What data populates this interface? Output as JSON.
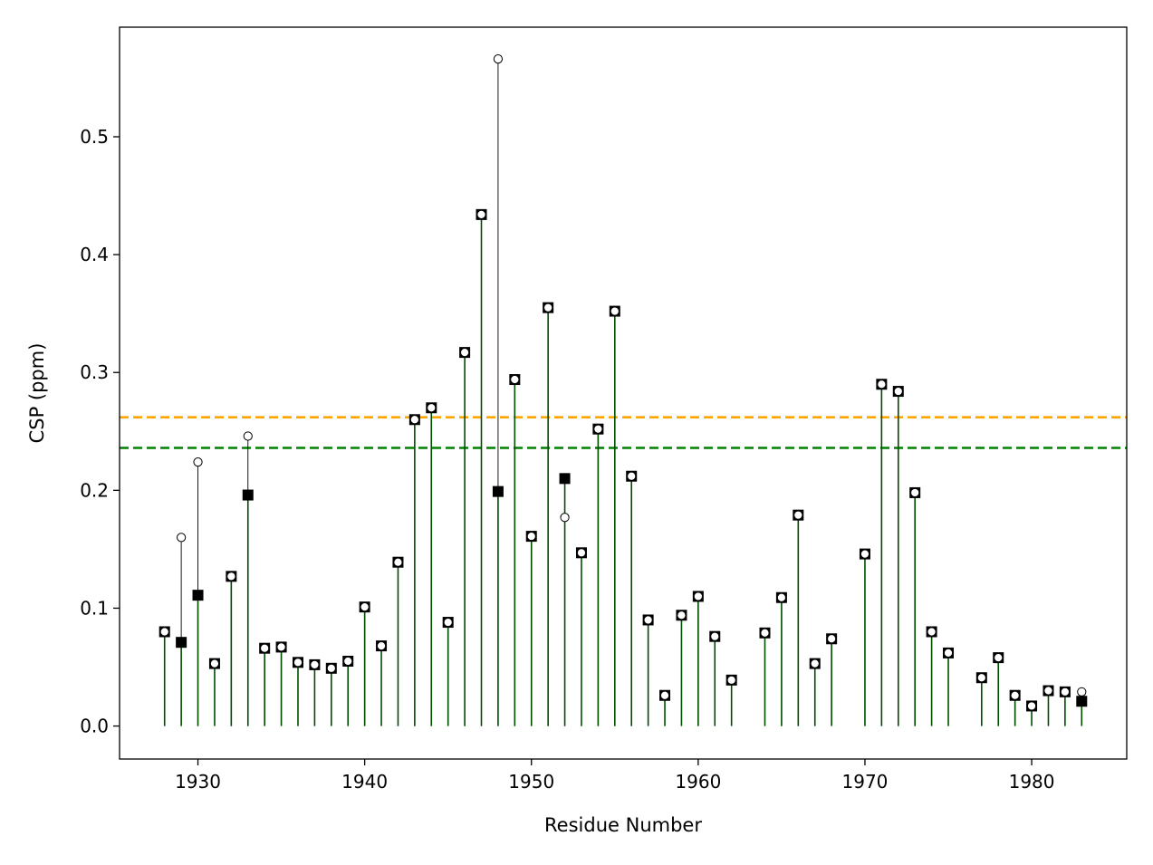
{
  "chart_data": {
    "type": "stem",
    "xlabel": "Residue Number",
    "ylabel": "CSP (ppm)",
    "xlim": [
      1925.3,
      1985.7
    ],
    "ylim": [
      -0.028,
      0.593
    ],
    "x_ticks": [
      1930,
      1940,
      1950,
      1960,
      1970,
      1980
    ],
    "y_ticks": [
      0.0,
      0.1,
      0.2,
      0.3,
      0.4,
      0.5
    ],
    "x_tick_labels": [
      "1930",
      "1940",
      "1950",
      "1960",
      "1970",
      "1980"
    ],
    "y_tick_labels": [
      "0.0",
      "0.1",
      "0.2",
      "0.3",
      "0.4",
      "0.5"
    ],
    "thresholds": [
      {
        "value": 0.262,
        "color": "#ffa500",
        "style": "dashed"
      },
      {
        "value": 0.236,
        "color": "#008000",
        "style": "dashed"
      }
    ],
    "series": [
      {
        "marker": "square",
        "stem_color": "#004d00",
        "marker_color": "#000000",
        "residues": [
          1928,
          1929,
          1930,
          1931,
          1932,
          1933,
          1934,
          1935,
          1936,
          1937,
          1938,
          1939,
          1940,
          1941,
          1942,
          1943,
          1944,
          1945,
          1946,
          1947,
          1948,
          1949,
          1950,
          1951,
          1952,
          1953,
          1954,
          1955,
          1956,
          1957,
          1958,
          1959,
          1960,
          1961,
          1962,
          1964,
          1965,
          1966,
          1967,
          1968,
          1970,
          1971,
          1972,
          1973,
          1974,
          1975,
          1977,
          1978,
          1979,
          1980,
          1981,
          1982,
          1983
        ],
        "values": [
          0.08,
          0.071,
          0.111,
          0.053,
          0.127,
          0.196,
          0.066,
          0.067,
          0.054,
          0.052,
          0.049,
          0.055,
          0.101,
          0.068,
          0.139,
          0.26,
          0.27,
          0.088,
          0.317,
          0.434,
          0.199,
          0.294,
          0.161,
          0.355,
          0.21,
          0.147,
          0.252,
          0.352,
          0.212,
          0.09,
          0.026,
          0.094,
          0.11,
          0.076,
          0.039,
          0.079,
          0.109,
          0.179,
          0.053,
          0.074,
          0.146,
          0.29,
          0.284,
          0.198,
          0.08,
          0.062,
          0.041,
          0.058,
          0.026,
          0.017,
          0.03,
          0.029,
          0.021
        ]
      },
      {
        "marker": "circle",
        "stem_color": "#000000",
        "marker_color": "#ffffff",
        "residues": [
          1928,
          1929,
          1930,
          1931,
          1932,
          1933,
          1934,
          1935,
          1936,
          1937,
          1938,
          1939,
          1940,
          1941,
          1942,
          1943,
          1944,
          1945,
          1946,
          1947,
          1948,
          1949,
          1950,
          1951,
          1952,
          1953,
          1954,
          1955,
          1956,
          1957,
          1958,
          1959,
          1960,
          1961,
          1962,
          1964,
          1965,
          1966,
          1967,
          1968,
          1970,
          1971,
          1972,
          1973,
          1974,
          1975,
          1977,
          1978,
          1979,
          1980,
          1981,
          1982,
          1983
        ],
        "values": [
          0.08,
          0.16,
          0.224,
          0.053,
          0.127,
          0.246,
          0.066,
          0.067,
          0.054,
          0.052,
          0.049,
          0.055,
          0.101,
          0.068,
          0.139,
          0.26,
          0.27,
          0.088,
          0.317,
          0.434,
          0.566,
          0.294,
          0.161,
          0.355,
          0.177,
          0.147,
          0.252,
          0.352,
          0.212,
          0.09,
          0.026,
          0.094,
          0.11,
          0.076,
          0.039,
          0.079,
          0.109,
          0.179,
          0.053,
          0.074,
          0.146,
          0.29,
          0.284,
          0.198,
          0.08,
          0.062,
          0.041,
          0.058,
          0.026,
          0.017,
          0.03,
          0.029,
          0.029
        ]
      }
    ]
  }
}
